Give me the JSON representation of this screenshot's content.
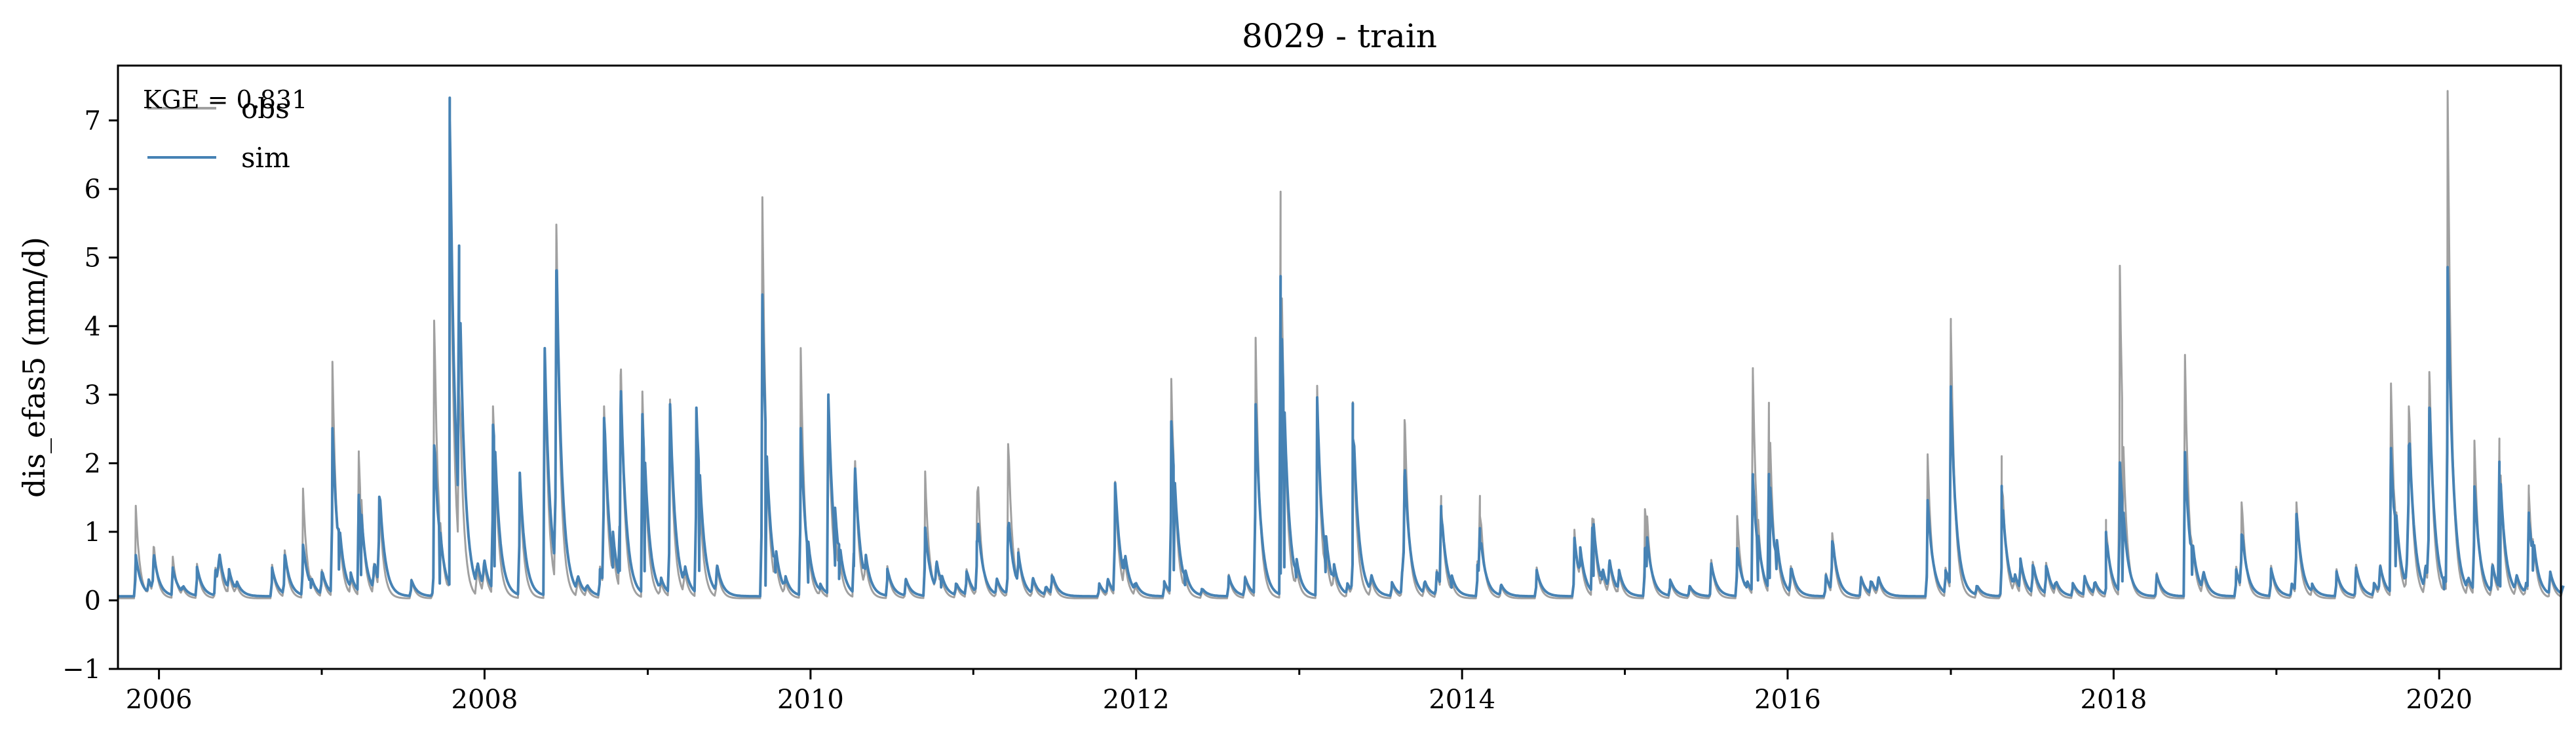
{
  "chart_data": {
    "type": "line",
    "title": "8029 - train",
    "xlabel": "",
    "ylabel": "dis_efas5 (mm/d)",
    "xlim": [
      "2005-10-01",
      "2020-09-30"
    ],
    "ylim": [
      -1,
      7.8
    ],
    "x_ticks": [
      "2006",
      "2008",
      "2010",
      "2012",
      "2014",
      "2016",
      "2018",
      "2020"
    ],
    "y_ticks": [
      "−1",
      "0",
      "1",
      "2",
      "3",
      "4",
      "5",
      "6",
      "7"
    ],
    "annotation": "KGE = 0.831",
    "legend": {
      "position": "top-left",
      "entries": [
        "obs",
        "sim"
      ]
    },
    "grid": false,
    "colors": {
      "obs": "#a0a0a0",
      "sim": "#4682b4"
    },
    "series": [
      {
        "name": "obs",
        "color": "#a0a0a0",
        "peaks": [
          [
            "2005-11-10",
            1.35
          ],
          [
            "2005-12-20",
            0.75
          ],
          [
            "2006-02-01",
            0.6
          ],
          [
            "2006-05-15",
            0.5
          ],
          [
            "2006-10-10",
            0.7
          ],
          [
            "2006-11-20",
            1.6
          ],
          [
            "2007-01-25",
            3.45
          ],
          [
            "2007-03-25",
            2.1
          ],
          [
            "2007-05-10",
            1.4
          ],
          [
            "2007-09-10",
            4.05
          ],
          [
            "2007-10-15",
            6.9
          ],
          [
            "2007-11-05",
            3.0
          ],
          [
            "2008-01-20",
            2.8
          ],
          [
            "2008-03-20",
            1.8
          ],
          [
            "2008-05-15",
            3.6
          ],
          [
            "2008-06-10",
            5.45
          ],
          [
            "2008-09-25",
            2.8
          ],
          [
            "2008-11-01",
            3.25
          ],
          [
            "2008-12-20",
            3.0
          ],
          [
            "2009-02-20",
            2.9
          ],
          [
            "2009-04-20",
            2.75
          ],
          [
            "2009-09-15",
            5.85
          ],
          [
            "2009-12-10",
            3.65
          ],
          [
            "2010-02-10",
            2.9
          ],
          [
            "2010-04-10",
            1.8
          ],
          [
            "2010-09-15",
            1.85
          ],
          [
            "2011-01-10",
            1.55
          ],
          [
            "2011-03-20",
            2.25
          ],
          [
            "2011-11-15",
            1.7
          ],
          [
            "2012-03-20",
            3.2
          ],
          [
            "2012-09-25",
            3.8
          ],
          [
            "2012-11-20",
            5.7
          ],
          [
            "2013-02-10",
            3.1
          ],
          [
            "2013-05-01",
            2.3
          ],
          [
            "2013-08-25",
            2.6
          ],
          [
            "2013-11-15",
            1.35
          ],
          [
            "2014-02-10",
            1.2
          ],
          [
            "2014-09-10",
            1.0
          ],
          [
            "2014-10-20",
            1.1
          ],
          [
            "2015-02-15",
            1.3
          ],
          [
            "2015-09-10",
            1.2
          ],
          [
            "2015-10-15",
            3.3
          ],
          [
            "2015-11-20",
            2.7
          ],
          [
            "2016-04-10",
            0.95
          ],
          [
            "2016-11-10",
            2.1
          ],
          [
            "2017-01-01",
            3.95
          ],
          [
            "2017-04-25",
            1.6
          ],
          [
            "2017-12-15",
            1.0
          ],
          [
            "2018-01-15",
            4.85
          ],
          [
            "2018-06-10",
            3.55
          ],
          [
            "2018-10-15",
            1.4
          ],
          [
            "2019-02-15",
            1.4
          ],
          [
            "2019-09-15",
            3.1
          ],
          [
            "2019-10-25",
            2.8
          ],
          [
            "2019-12-10",
            3.3
          ],
          [
            "2020-01-20",
            7.4
          ],
          [
            "2020-03-20",
            2.3
          ],
          [
            "2020-05-15",
            2.2
          ],
          [
            "2020-07-20",
            1.55
          ]
        ]
      },
      {
        "name": "sim",
        "color": "#4682b4",
        "peaks": [
          [
            "2005-11-10",
            0.6
          ],
          [
            "2005-12-20",
            0.55
          ],
          [
            "2006-02-01",
            0.4
          ],
          [
            "2006-05-15",
            0.5
          ],
          [
            "2006-10-10",
            0.6
          ],
          [
            "2006-11-20",
            0.75
          ],
          [
            "2007-01-25",
            2.45
          ],
          [
            "2007-03-25",
            1.4
          ],
          [
            "2007-05-10",
            1.45
          ],
          [
            "2007-09-10",
            2.2
          ],
          [
            "2007-10-15",
            6.95
          ],
          [
            "2007-11-05",
            3.85
          ],
          [
            "2008-01-20",
            2.5
          ],
          [
            "2008-03-20",
            1.8
          ],
          [
            "2008-05-15",
            3.6
          ],
          [
            "2008-06-10",
            4.75
          ],
          [
            "2008-09-25",
            2.6
          ],
          [
            "2008-11-01",
            2.7
          ],
          [
            "2008-12-20",
            2.6
          ],
          [
            "2009-02-20",
            2.8
          ],
          [
            "2009-04-20",
            2.75
          ],
          [
            "2009-09-15",
            4.4
          ],
          [
            "2009-12-10",
            2.45
          ],
          [
            "2010-02-10",
            2.9
          ],
          [
            "2010-04-10",
            1.6
          ],
          [
            "2010-09-15",
            1.0
          ],
          [
            "2011-01-10",
            0.8
          ],
          [
            "2011-03-20",
            1.0
          ],
          [
            "2011-11-15",
            1.65
          ],
          [
            "2012-03-20",
            2.55
          ],
          [
            "2012-09-25",
            2.8
          ],
          [
            "2012-11-20",
            4.45
          ],
          [
            "2013-02-10",
            2.9
          ],
          [
            "2013-05-01",
            2.3
          ],
          [
            "2013-08-25",
            1.75
          ],
          [
            "2013-11-15",
            1.15
          ],
          [
            "2014-02-10",
            0.7
          ],
          [
            "2014-09-10",
            0.85
          ],
          [
            "2014-10-20",
            0.9
          ],
          [
            "2015-02-15",
            0.7
          ],
          [
            "2015-09-10",
            0.7
          ],
          [
            "2015-10-15",
            1.7
          ],
          [
            "2015-11-20",
            1.6
          ],
          [
            "2016-04-10",
            0.8
          ],
          [
            "2016-11-10",
            1.4
          ],
          [
            "2017-01-01",
            2.9
          ],
          [
            "2017-04-25",
            1.2
          ],
          [
            "2017-12-15",
            0.8
          ],
          [
            "2018-01-15",
            1.95
          ],
          [
            "2018-06-10",
            2.1
          ],
          [
            "2018-10-15",
            0.9
          ],
          [
            "2019-02-15",
            1.2
          ],
          [
            "2019-09-15",
            2.1
          ],
          [
            "2019-10-25",
            2.2
          ],
          [
            "2019-12-10",
            2.75
          ],
          [
            "2020-01-20",
            4.8
          ],
          [
            "2020-03-20",
            1.6
          ],
          [
            "2020-05-15",
            1.8
          ],
          [
            "2020-07-20",
            1.1
          ]
        ]
      }
    ]
  }
}
